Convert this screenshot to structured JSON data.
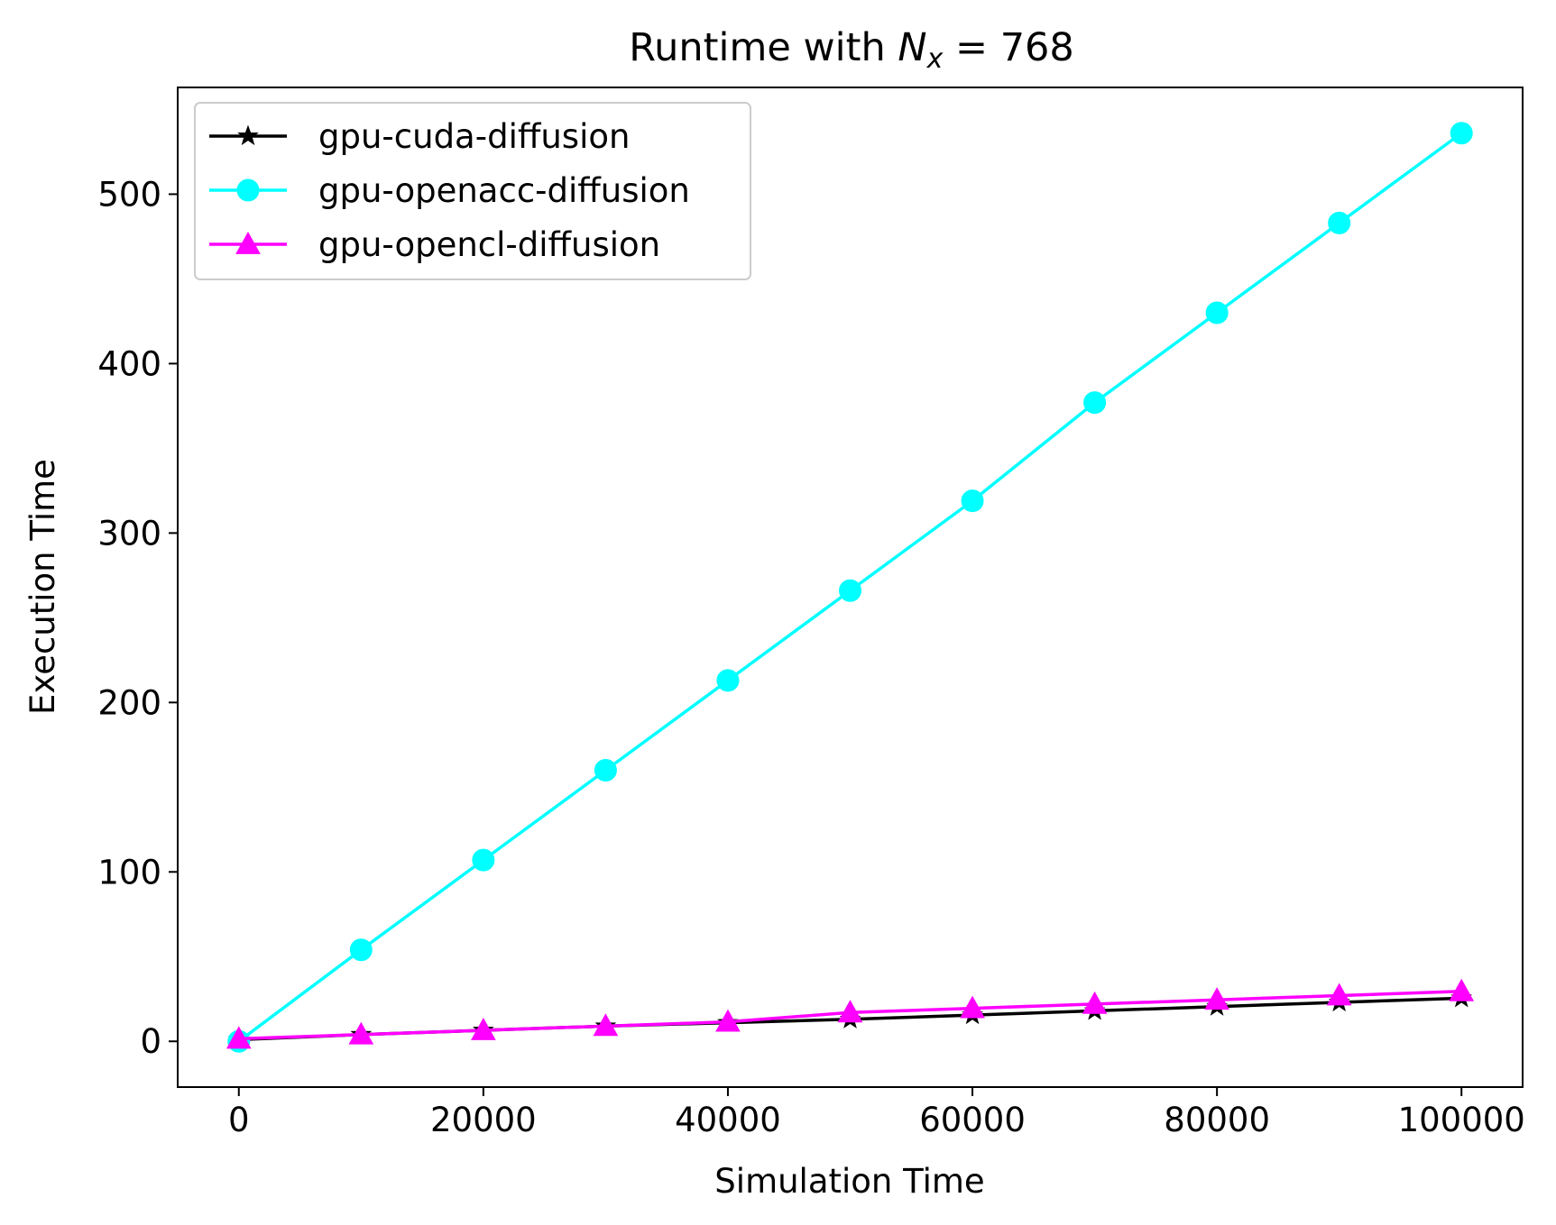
{
  "chart_data": {
    "type": "line",
    "title_prefix": "Runtime with ",
    "title_var": "N",
    "title_sub": "x",
    "title_suffix": " = 768",
    "xlabel": "Simulation Time",
    "ylabel": "Execution Time",
    "xlim": [
      -5000,
      105000
    ],
    "ylim": [
      -27,
      563
    ],
    "xticks": [
      0,
      20000,
      40000,
      60000,
      80000,
      100000
    ],
    "yticks": [
      0,
      100,
      200,
      300,
      400,
      500
    ],
    "grid": false,
    "legend_position": "top-left",
    "x": [
      0,
      10000,
      20000,
      30000,
      40000,
      50000,
      60000,
      70000,
      80000,
      90000,
      100000
    ],
    "series": [
      {
        "name": "gpu-cuda-diffusion",
        "color": "#000000",
        "marker": "star",
        "values": [
          1,
          4,
          6.5,
          9,
          11,
          13,
          15.5,
          18,
          20.5,
          23,
          25.5
        ]
      },
      {
        "name": "gpu-openacc-diffusion",
        "color": "#00ffff",
        "marker": "circle",
        "values": [
          0,
          54,
          107,
          160,
          213,
          266,
          319,
          377,
          430,
          483,
          536
        ]
      },
      {
        "name": "gpu-opencl-diffusion",
        "color": "#ff00ff",
        "marker": "triangle",
        "values": [
          1.5,
          4,
          6.5,
          9,
          11.5,
          17,
          19.5,
          22,
          24.5,
          27,
          29.5
        ]
      }
    ]
  }
}
